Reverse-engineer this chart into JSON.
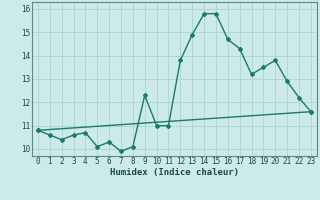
{
  "line1_x": [
    0,
    1,
    2,
    3,
    4,
    5,
    6,
    7,
    8,
    9,
    10,
    11,
    12,
    13,
    14,
    15,
    16,
    17,
    18,
    19,
    20,
    21,
    22,
    23
  ],
  "line1_y": [
    10.8,
    10.6,
    10.4,
    10.6,
    10.7,
    10.1,
    10.3,
    9.9,
    10.1,
    12.3,
    11.0,
    11.0,
    13.8,
    14.9,
    15.8,
    15.8,
    14.7,
    14.3,
    13.2,
    13.5,
    13.8,
    12.9,
    12.2,
    11.6
  ],
  "line2_x": [
    0,
    23
  ],
  "line2_y": [
    10.8,
    11.6
  ],
  "line_color": "#1a7a6e",
  "bg_color": "#cceae7",
  "grid_color": "#aad4d0",
  "xlabel": "Humidex (Indice chaleur)",
  "ylim": [
    9.7,
    16.3
  ],
  "xlim": [
    -0.5,
    23.5
  ],
  "yticks": [
    10,
    11,
    12,
    13,
    14,
    15,
    16
  ],
  "xticks": [
    0,
    1,
    2,
    3,
    4,
    5,
    6,
    7,
    8,
    9,
    10,
    11,
    12,
    13,
    14,
    15,
    16,
    17,
    18,
    19,
    20,
    21,
    22,
    23
  ],
  "xtick_labels": [
    "0",
    "1",
    "2",
    "3",
    "4",
    "5",
    "6",
    "7",
    "8",
    "9",
    "10",
    "11",
    "12",
    "13",
    "14",
    "15",
    "16",
    "17",
    "18",
    "19",
    "20",
    "21",
    "22",
    "23"
  ],
  "marker": "D",
  "markersize": 2.0,
  "linewidth": 1.0,
  "tick_fontsize": 5.5,
  "label_fontsize": 6.5
}
